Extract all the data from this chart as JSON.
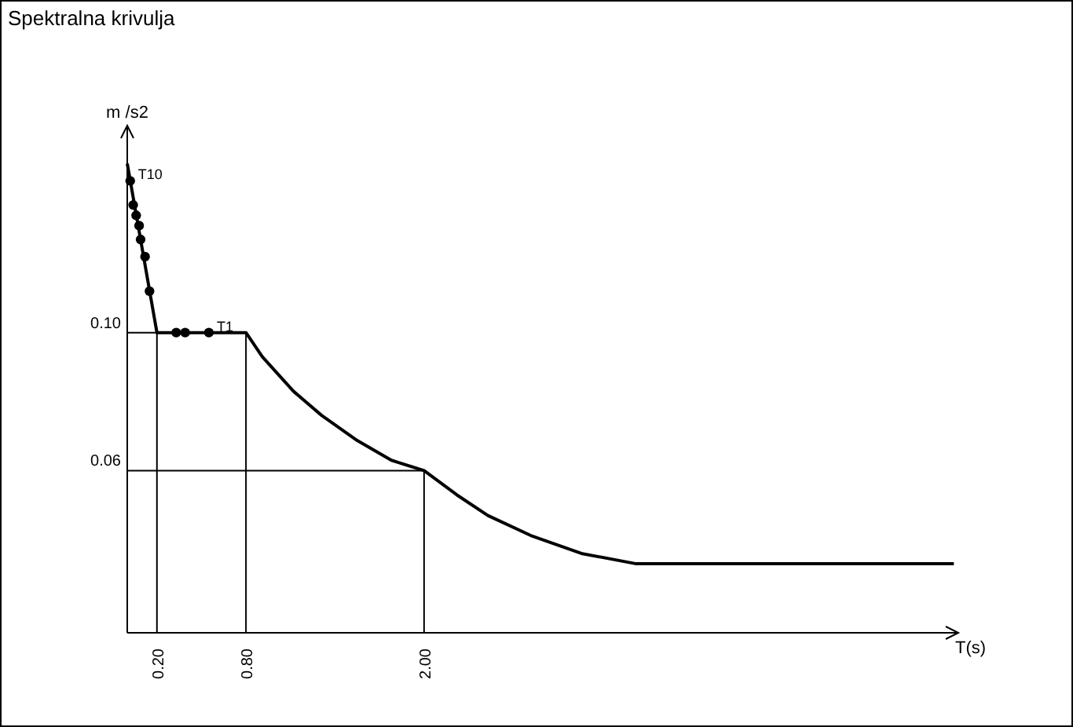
{
  "chart_data": {
    "type": "line",
    "title": "Spektralna krivulja",
    "xlabel": "T(s)",
    "ylabel": "m /s2",
    "xlim": [
      0,
      5.6
    ],
    "ylim": [
      0.013,
      0.16
    ],
    "xticks": [
      {
        "value": 0.2,
        "label": "0.20"
      },
      {
        "value": 0.8,
        "label": "0.80"
      },
      {
        "value": 2.0,
        "label": "2.00"
      }
    ],
    "yticks": [
      {
        "value": 0.1,
        "label": "0.10"
      },
      {
        "value": 0.06,
        "label": "0.06"
      }
    ],
    "ref_lines": [
      {
        "axis": "x",
        "value": 0.2
      },
      {
        "axis": "x",
        "value": 0.8
      },
      {
        "axis": "x",
        "value": 2.0
      },
      {
        "axis": "y",
        "value": 0.1
      },
      {
        "axis": "y",
        "value": 0.06
      }
    ],
    "series": [
      {
        "color": "#000000",
        "marker": "none",
        "x": [
          0,
          0.2,
          0.8,
          0.91,
          1.12,
          1.31,
          1.54,
          1.78,
          2.0,
          2.22,
          2.43,
          2.73,
          3.06,
          3.43,
          5.57
        ],
        "values": [
          0.149,
          0.1,
          0.1,
          0.093,
          0.083,
          0.076,
          0.069,
          0.063,
          0.06,
          0.053,
          0.047,
          0.041,
          0.036,
          0.033,
          0.033
        ]
      },
      {
        "type": "scatter",
        "color": "#000000",
        "marker": "circle",
        "x": [
          0.02,
          0.04,
          0.06,
          0.08,
          0.09,
          0.12,
          0.15,
          0.33,
          0.39,
          0.55
        ],
        "values": [
          0.144,
          0.137,
          0.134,
          0.131,
          0.127,
          0.122,
          0.112,
          0.1,
          0.1,
          0.1
        ]
      }
    ],
    "annotations": [
      {
        "text": "T10",
        "x": 0.02,
        "y": 0.144
      },
      {
        "text": "T1",
        "x": 0.55,
        "y": 0.1
      }
    ]
  }
}
